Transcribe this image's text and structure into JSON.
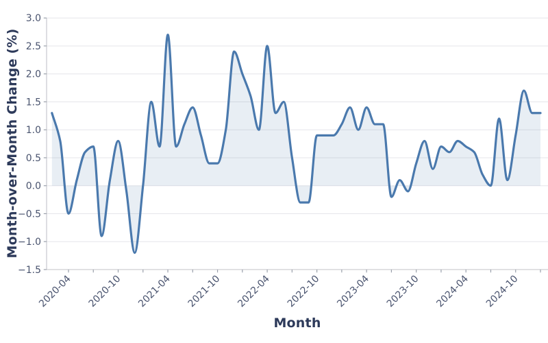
{
  "chart_data": {
    "type": "area",
    "title": "",
    "xlabel": "Month",
    "ylabel": "Month-over-Month Change (%)",
    "x": [
      "2020-02",
      "2020-03",
      "2020-04",
      "2020-05",
      "2020-06",
      "2020-07",
      "2020-08",
      "2020-09",
      "2020-10",
      "2020-11",
      "2020-12",
      "2021-01",
      "2021-02",
      "2021-03",
      "2021-04",
      "2021-05",
      "2021-06",
      "2021-07",
      "2021-08",
      "2021-09",
      "2021-10",
      "2021-11",
      "2021-12",
      "2022-01",
      "2022-02",
      "2022-03",
      "2022-04",
      "2022-05",
      "2022-06",
      "2022-07",
      "2022-08",
      "2022-09",
      "2022-10",
      "2022-11",
      "2022-12",
      "2023-01",
      "2023-02",
      "2023-03",
      "2023-04",
      "2023-05",
      "2023-06",
      "2023-07",
      "2023-08",
      "2023-09",
      "2023-10",
      "2023-11",
      "2023-12",
      "2024-01",
      "2024-02",
      "2024-03",
      "2024-04",
      "2024-05",
      "2024-06",
      "2024-07",
      "2024-08",
      "2024-09",
      "2024-10",
      "2024-11",
      "2024-12",
      "2025-01"
    ],
    "values": [
      1.3,
      0.8,
      -0.5,
      0.1,
      0.6,
      0.7,
      -0.9,
      0.1,
      0.8,
      -0.1,
      -1.2,
      0.0,
      1.5,
      0.7,
      2.7,
      0.7,
      1.1,
      1.4,
      0.9,
      0.4,
      0.4,
      1.0,
      2.4,
      2.0,
      1.6,
      1.0,
      2.5,
      1.3,
      1.5,
      0.5,
      -0.3,
      -0.3,
      0.9,
      0.9,
      0.9,
      1.1,
      1.4,
      1.0,
      1.4,
      1.1,
      1.1,
      -0.2,
      0.1,
      -0.1,
      0.4,
      0.8,
      0.3,
      0.7,
      0.6,
      0.8,
      0.7,
      0.6,
      0.2,
      0.0,
      1.2,
      0.1,
      0.9,
      1.7,
      1.3,
      1.3
    ],
    "baseline": 0,
    "ylim": [
      -1.5,
      3.0
    ],
    "yticks": {
      "values": [
        3.0,
        2.5,
        2.0,
        1.5,
        1.0,
        0.5,
        0.0,
        -0.5,
        -1.0,
        -1.5
      ],
      "labels": [
        "3.0",
        "2.5",
        "2.0",
        "1.5",
        "1.0",
        "0.5",
        "0.0",
        "−0.5",
        "−1.0",
        "−1.5"
      ]
    },
    "xticks_major": [
      "2020-04",
      "2020-10",
      "2021-04",
      "2021-10",
      "2022-04",
      "2022-10",
      "2023-04",
      "2023-10",
      "2024-04",
      "2024-10"
    ],
    "xticks_minor": [
      "2020-07",
      "2021-01",
      "2021-07",
      "2022-01",
      "2022-07",
      "2023-01",
      "2023-07",
      "2024-01",
      "2024-07",
      "2025-01"
    ],
    "grid": "horizontal",
    "legend": "none",
    "colors": {
      "line": "#4a79ad",
      "fill": "rgba(74,121,173,0.13)",
      "grid": "#e6e6ea",
      "spine": "#c9c9ce",
      "tick_mark": "#9aa0ab",
      "tick_label": "#49536e",
      "axis_title": "#2d3a5a"
    }
  }
}
